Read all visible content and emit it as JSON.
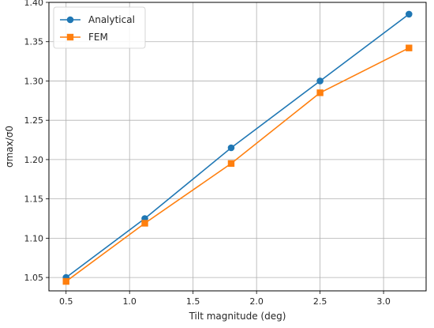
{
  "chart_data": {
    "type": "line",
    "title": "",
    "xlabel": "Tilt magnitude (deg)",
    "ylabel": "σmax/σ0",
    "xlim": [
      0.365,
      3.335
    ],
    "ylim": [
      1.033,
      1.4
    ],
    "xticks": [
      0.5,
      1.0,
      1.5,
      2.0,
      2.5,
      3.0
    ],
    "xtick_labels": [
      "0.5",
      "1.0",
      "1.5",
      "2.0",
      "2.5",
      "3.0"
    ],
    "yticks": [
      1.05,
      1.1,
      1.15,
      1.2,
      1.25,
      1.3,
      1.35,
      1.4
    ],
    "ytick_labels": [
      "1.05",
      "1.10",
      "1.15",
      "1.20",
      "1.25",
      "1.30",
      "1.35",
      "1.40"
    ],
    "grid": true,
    "legend_position": "top-left",
    "series": [
      {
        "name": "Analytical",
        "color": "#1f77b4",
        "marker": "circle",
        "x": [
          0.5,
          1.12,
          1.8,
          2.5,
          3.2
        ],
        "y": [
          1.05,
          1.125,
          1.215,
          1.3,
          1.385
        ]
      },
      {
        "name": "FEM",
        "color": "#ff7f0e",
        "marker": "square",
        "x": [
          0.5,
          1.12,
          1.8,
          2.5,
          3.2
        ],
        "y": [
          1.045,
          1.119,
          1.195,
          1.285,
          1.342
        ]
      }
    ]
  }
}
